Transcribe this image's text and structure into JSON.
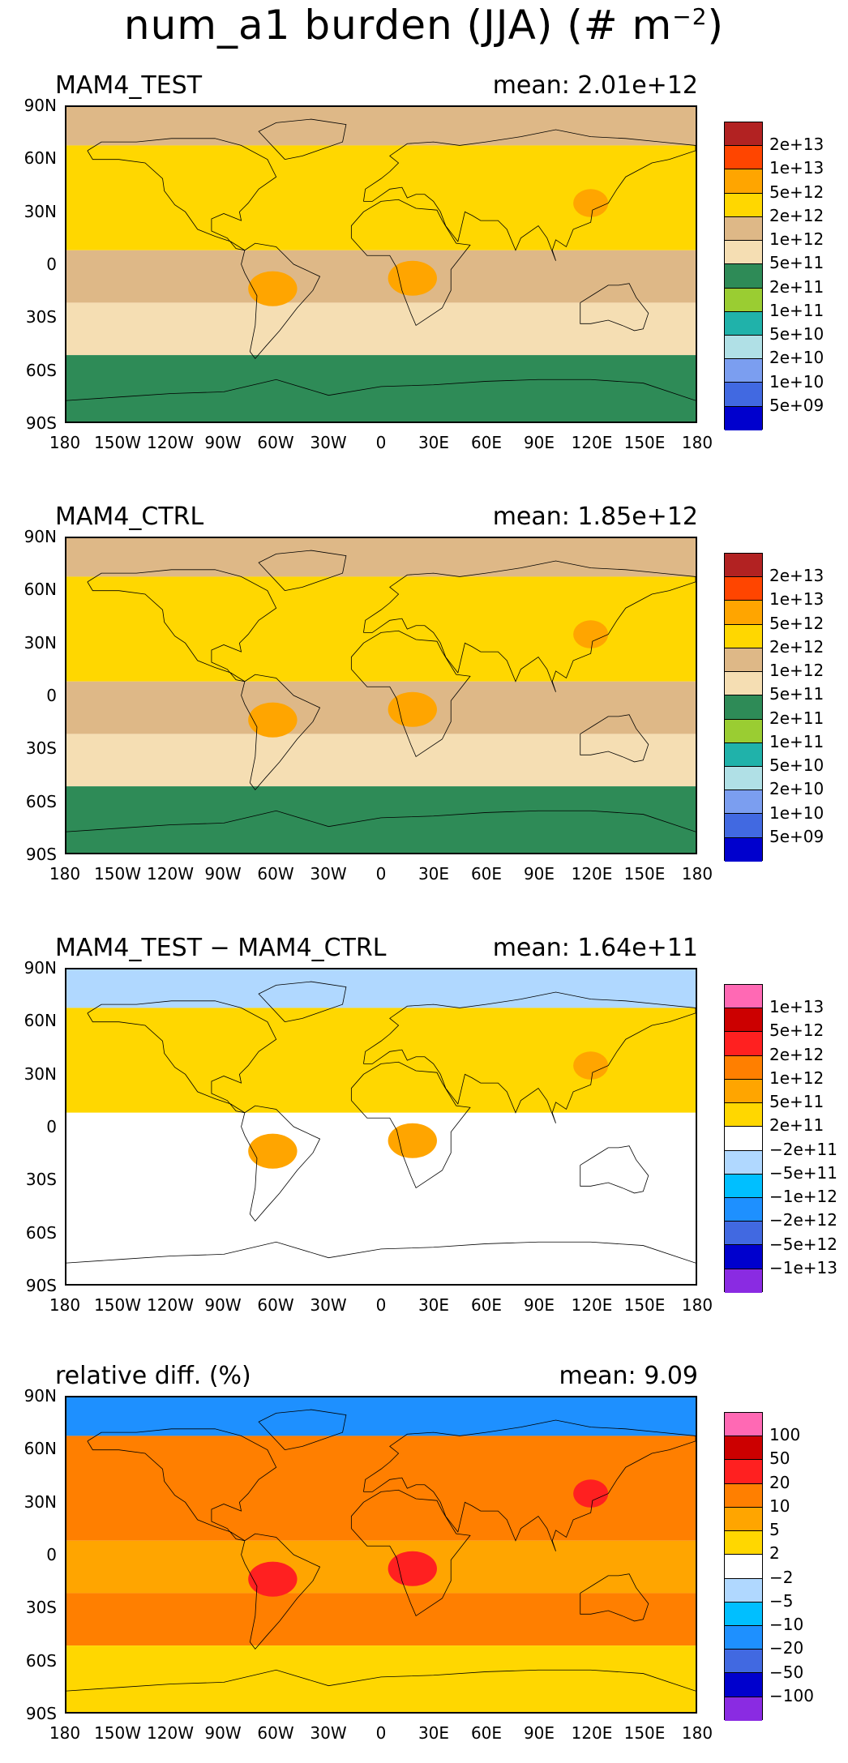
{
  "title": {
    "main": "num_a1 burden (JJA) (# m",
    "exp": "−2",
    "close": ")"
  },
  "lat_labels": [
    "90N",
    "60N",
    "30N",
    "0",
    "30S",
    "60S",
    "90S"
  ],
  "lon_labels": [
    "180",
    "150W",
    "120W",
    "90W",
    "60W",
    "30W",
    "0",
    "30E",
    "60E",
    "90E",
    "120E",
    "150E",
    "180"
  ],
  "panels": [
    {
      "name": "MAM4_TEST",
      "mean": "mean: 2.01e+12",
      "legend_labels": [
        "2e+13",
        "1e+13",
        "5e+12",
        "2e+12",
        "1e+12",
        "5e+11",
        "2e+11",
        "1e+11",
        "5e+10",
        "2e+10",
        "1e+10",
        "5e+09"
      ],
      "legend_colors": [
        "#b22222",
        "#ff4500",
        "#ffa500",
        "#ffd700",
        "#deb887",
        "#f5deb3",
        "#2e8b57",
        "#9acd32",
        "#20b2aa",
        "#b0e0e6",
        "#7b9ef0",
        "#4169e1",
        "#0000cd"
      ],
      "map_fill": {
        "north": "#deb887",
        "midlat": "#ffd700",
        "tropics": "#deb887",
        "south": "#f5deb3",
        "southern_ocean": "#2e8b57",
        "hotspot": "#ffa500"
      }
    },
    {
      "name": "MAM4_CTRL",
      "mean": "mean: 1.85e+12",
      "legend_labels": [
        "2e+13",
        "1e+13",
        "5e+12",
        "2e+12",
        "1e+12",
        "5e+11",
        "2e+11",
        "1e+11",
        "5e+10",
        "2e+10",
        "1e+10",
        "5e+09"
      ],
      "legend_colors": [
        "#b22222",
        "#ff4500",
        "#ffa500",
        "#ffd700",
        "#deb887",
        "#f5deb3",
        "#2e8b57",
        "#9acd32",
        "#20b2aa",
        "#b0e0e6",
        "#7b9ef0",
        "#4169e1",
        "#0000cd"
      ],
      "map_fill": {
        "north": "#deb887",
        "midlat": "#ffd700",
        "tropics": "#deb887",
        "south": "#f5deb3",
        "southern_ocean": "#2e8b57",
        "hotspot": "#ffa500"
      }
    },
    {
      "name": "MAM4_TEST − MAM4_CTRL",
      "mean": "mean: 1.64e+11",
      "legend_labels": [
        "1e+13",
        "5e+12",
        "2e+12",
        "1e+12",
        "5e+11",
        "2e+11",
        "−2e+11",
        "−5e+11",
        "−1e+12",
        "−2e+12",
        "−5e+12",
        "−1e+13"
      ],
      "legend_colors": [
        "#ff69b4",
        "#cc0000",
        "#ff2020",
        "#ff7f00",
        "#ffa500",
        "#ffd700",
        "#ffffff",
        "#b0d8ff",
        "#00bfff",
        "#1e90ff",
        "#4169e1",
        "#0000cd",
        "#8a2be2"
      ],
      "map_fill": {
        "north": "#b0d8ff",
        "midlat": "#ffd700",
        "tropics": "#ffffff",
        "south": "#ffffff",
        "southern_ocean": "#ffffff",
        "hotspot": "#ffa500"
      }
    },
    {
      "name": "relative diff. (%)",
      "mean": "mean:  9.09",
      "legend_labels": [
        "100",
        "50",
        "20",
        "10",
        "5",
        "2",
        "−2",
        "−5",
        "−10",
        "−20",
        "−50",
        "−100"
      ],
      "legend_colors": [
        "#ff69b4",
        "#cc0000",
        "#ff2020",
        "#ff7f00",
        "#ffa500",
        "#ffd700",
        "#ffffff",
        "#b0d8ff",
        "#00bfff",
        "#1e90ff",
        "#4169e1",
        "#0000cd",
        "#8a2be2"
      ],
      "map_fill": {
        "north": "#1e90ff",
        "midlat": "#ff7f00",
        "tropics": "#ffa500",
        "south": "#ff7f00",
        "southern_ocean": "#ffd700",
        "hotspot": "#ff2020"
      }
    }
  ]
}
